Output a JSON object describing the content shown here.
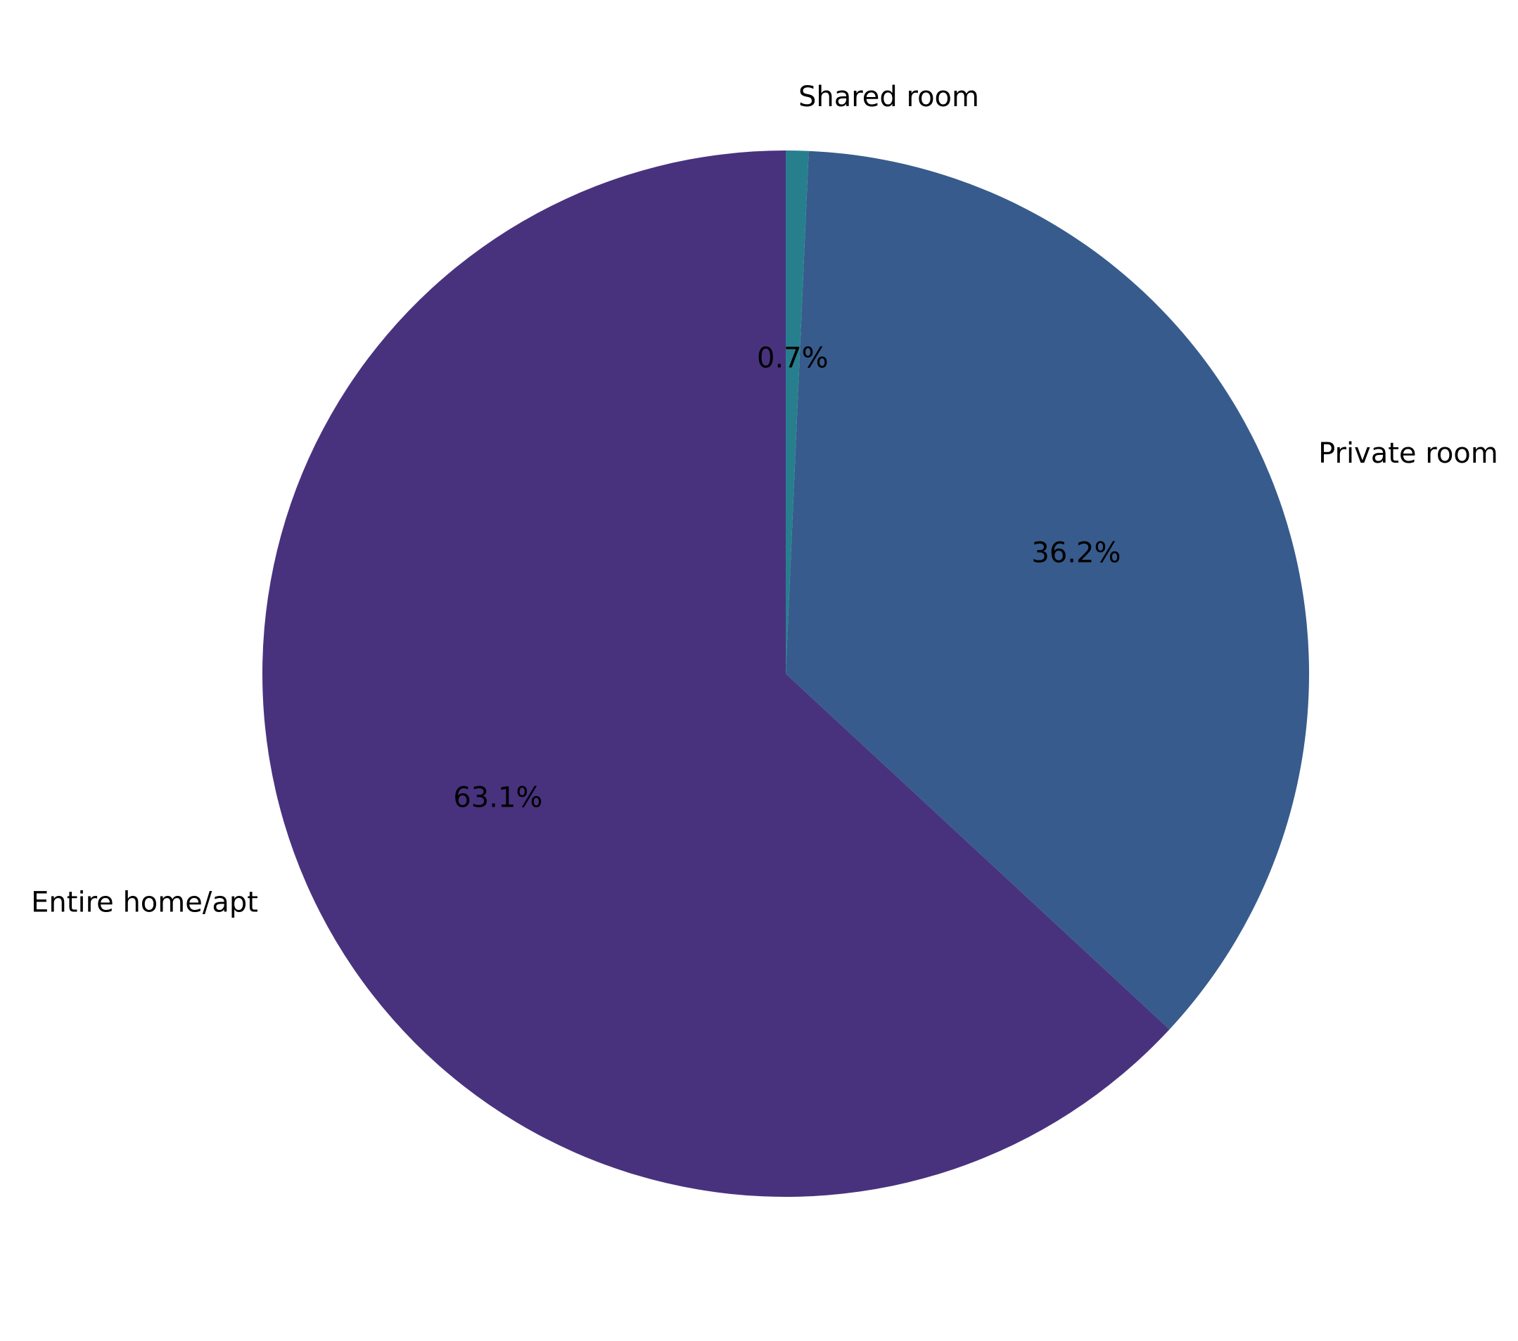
{
  "chart_data": {
    "type": "pie",
    "title": "",
    "categories": [
      "Entire home/apt",
      "Private room",
      "Shared room"
    ],
    "values": [
      63.1,
      36.2,
      0.7
    ],
    "value_labels": [
      "63.1%",
      "36.2%",
      "0.7%"
    ],
    "colors": [
      "#48327e",
      "#375b8c",
      "#277f8e"
    ],
    "start_angle_deg": 90,
    "direction": "counterclockwise",
    "legend": "none"
  }
}
